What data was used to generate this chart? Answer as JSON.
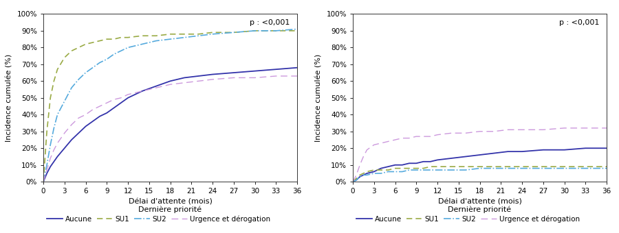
{
  "p_value_text": "p : <0,001",
  "xlabel": "Délai d'attente (mois)",
  "ylabel": "Incidence cumulée (%)",
  "legend_title": "Dernière priorité",
  "legend_labels": [
    "Aucune",
    "SU1",
    "SU2",
    "Urgence et dérogation"
  ],
  "colors": {
    "Aucune": "#3333aa",
    "SU1": "#99aa44",
    "SU2": "#55aadd",
    "Urgence": "#cc99dd"
  },
  "xticks": [
    0,
    3,
    6,
    9,
    12,
    15,
    18,
    21,
    24,
    27,
    30,
    33,
    36
  ],
  "xlim": [
    0,
    36
  ],
  "ylim": [
    0,
    1.0
  ],
  "yticks": [
    0,
    0.1,
    0.2,
    0.3,
    0.4,
    0.5,
    0.6,
    0.7,
    0.8,
    0.9,
    1.0
  ],
  "left_curves": {
    "x": [
      0,
      0.5,
      1,
      1.5,
      2,
      3,
      4,
      5,
      6,
      7,
      8,
      9,
      10,
      11,
      12,
      14,
      16,
      18,
      20,
      22,
      24,
      27,
      30,
      33,
      36
    ],
    "Aucune": [
      0,
      0.05,
      0.09,
      0.12,
      0.15,
      0.2,
      0.25,
      0.29,
      0.33,
      0.36,
      0.39,
      0.41,
      0.44,
      0.47,
      0.5,
      0.54,
      0.57,
      0.6,
      0.62,
      0.63,
      0.64,
      0.65,
      0.66,
      0.67,
      0.68
    ],
    "SU1": [
      0,
      0.3,
      0.5,
      0.6,
      0.67,
      0.74,
      0.78,
      0.8,
      0.82,
      0.83,
      0.84,
      0.85,
      0.85,
      0.86,
      0.86,
      0.87,
      0.87,
      0.88,
      0.88,
      0.88,
      0.89,
      0.89,
      0.9,
      0.9,
      0.9
    ],
    "SU2": [
      0,
      0.1,
      0.22,
      0.32,
      0.4,
      0.48,
      0.56,
      0.61,
      0.65,
      0.68,
      0.71,
      0.73,
      0.76,
      0.78,
      0.8,
      0.82,
      0.84,
      0.85,
      0.86,
      0.87,
      0.88,
      0.89,
      0.9,
      0.9,
      0.91
    ],
    "Urgence": [
      0,
      0.07,
      0.14,
      0.19,
      0.23,
      0.29,
      0.34,
      0.38,
      0.4,
      0.43,
      0.45,
      0.47,
      0.49,
      0.5,
      0.52,
      0.54,
      0.56,
      0.58,
      0.59,
      0.6,
      0.61,
      0.62,
      0.62,
      0.63,
      0.63
    ]
  },
  "right_curves": {
    "x": [
      0,
      0.5,
      1,
      1.5,
      2,
      3,
      4,
      5,
      6,
      7,
      8,
      9,
      10,
      11,
      12,
      14,
      16,
      18,
      20,
      22,
      24,
      27,
      30,
      33,
      36
    ],
    "Aucune": [
      0,
      0.01,
      0.03,
      0.04,
      0.05,
      0.06,
      0.08,
      0.09,
      0.1,
      0.1,
      0.11,
      0.11,
      0.12,
      0.12,
      0.13,
      0.14,
      0.15,
      0.16,
      0.17,
      0.18,
      0.18,
      0.19,
      0.19,
      0.2,
      0.2
    ],
    "SU1": [
      0,
      0.02,
      0.04,
      0.05,
      0.06,
      0.07,
      0.07,
      0.07,
      0.08,
      0.08,
      0.08,
      0.08,
      0.08,
      0.09,
      0.09,
      0.09,
      0.09,
      0.09,
      0.09,
      0.09,
      0.09,
      0.09,
      0.09,
      0.09,
      0.09
    ],
    "SU2": [
      0,
      0.01,
      0.03,
      0.04,
      0.04,
      0.05,
      0.05,
      0.06,
      0.06,
      0.06,
      0.07,
      0.07,
      0.07,
      0.07,
      0.07,
      0.07,
      0.07,
      0.08,
      0.08,
      0.08,
      0.08,
      0.08,
      0.08,
      0.08,
      0.08
    ],
    "Urgence": [
      0,
      0.04,
      0.1,
      0.15,
      0.19,
      0.22,
      0.23,
      0.24,
      0.25,
      0.26,
      0.26,
      0.27,
      0.27,
      0.27,
      0.28,
      0.29,
      0.29,
      0.3,
      0.3,
      0.31,
      0.31,
      0.31,
      0.32,
      0.32,
      0.32
    ]
  }
}
